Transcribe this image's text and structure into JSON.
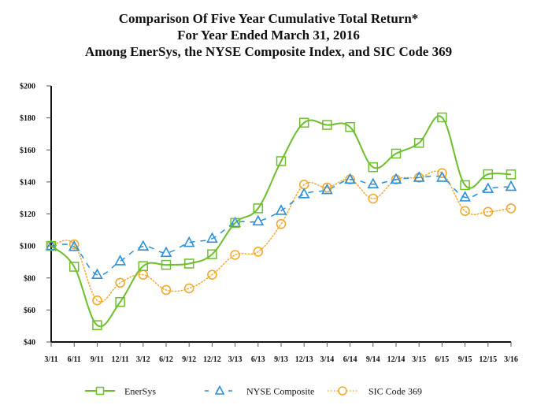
{
  "chart_data": {
    "type": "line",
    "title": "Comparison Of Five Year Cumulative Total Return*",
    "subtitle": "For Year Ended March 31, 2016",
    "subtitle2": "Among EnerSys, the NYSE Composite Index, and SIC Code 369",
    "xlabel": "",
    "ylabel": "",
    "ylim": [
      40,
      200
    ],
    "yticks": [
      40,
      60,
      80,
      100,
      120,
      140,
      160,
      180,
      200
    ],
    "ytick_labels": [
      "$40",
      "$60",
      "$80",
      "$100",
      "$120",
      "$140",
      "$160",
      "$180",
      "$200"
    ],
    "categories": [
      "3/11",
      "6/11",
      "9/11",
      "12/11",
      "3/12",
      "6/12",
      "9/12",
      "12/12",
      "3/13",
      "6/13",
      "9/13",
      "12/13",
      "3/14",
      "6/14",
      "9/14",
      "12/14",
      "3/15",
      "6/15",
      "9/15",
      "12/15",
      "3/16"
    ],
    "grid": false,
    "legend_position": "bottom",
    "series": [
      {
        "name": "EnerSys",
        "color": "#6cbf2a",
        "marker": "square",
        "line_style": "solid",
        "values": [
          100,
          87,
          50.5,
          65,
          87.4,
          88.2,
          89,
          94.8,
          114.4,
          123.5,
          153,
          177,
          175.6,
          174.3,
          149.2,
          157.7,
          164.4,
          180.3,
          138,
          144.8,
          144.7
        ]
      },
      {
        "name": "NYSE Composite",
        "color": "#2a8fd8",
        "marker": "triangle",
        "line_style": "dashed",
        "values": [
          100,
          99.5,
          82,
          90.5,
          99.7,
          95.7,
          102,
          104.6,
          114.4,
          115.4,
          122,
          132.4,
          135,
          141.5,
          138.6,
          141.5,
          142.7,
          142.7,
          130.4,
          135.7,
          137
        ]
      },
      {
        "name": "SIC Code 369",
        "color": "#f2a92e",
        "marker": "circle",
        "line_style": "dotted",
        "values": [
          100,
          101,
          66,
          77,
          82,
          72.5,
          73.5,
          82,
          94.4,
          96.4,
          113.7,
          138.3,
          136.5,
          141.5,
          129.6,
          141.5,
          142.7,
          145.5,
          121.8,
          121.3,
          123.5
        ]
      }
    ]
  }
}
